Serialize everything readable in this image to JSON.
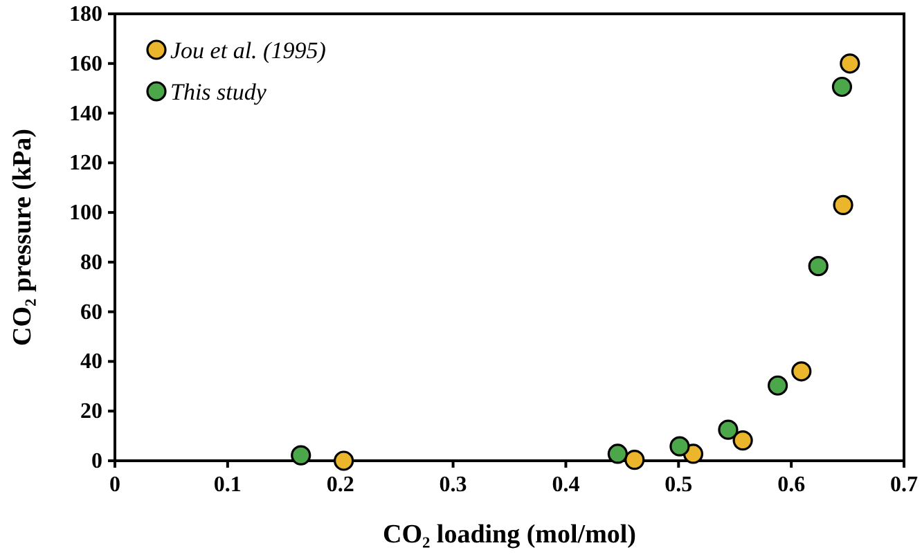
{
  "chart_data": {
    "type": "scatter",
    "xlabel": "CO₂ loading (mol/mol)",
    "ylabel": "CO₂ pressure (kPa)",
    "xlim": [
      0,
      0.7
    ],
    "xticks": [
      0,
      0.1,
      0.2,
      0.3,
      0.4,
      0.5,
      0.6,
      0.7
    ],
    "ylim": [
      0,
      180
    ],
    "yticks": [
      0,
      20,
      40,
      60,
      80,
      100,
      120,
      140,
      160,
      180
    ],
    "grid": false,
    "legend": "top left",
    "marker": "circle",
    "series": [
      {
        "name": "Jou et al. (1995)",
        "color": "#ebb52c",
        "x": [
          0.203,
          0.461,
          0.513,
          0.557,
          0.609,
          0.646,
          0.652
        ],
        "values": [
          0,
          0.4,
          2.8,
          8.2,
          36,
          103,
          160
        ]
      },
      {
        "name": "This study",
        "color": "#4ca64a",
        "x": [
          0.165,
          0.446,
          0.501,
          0.544,
          0.588,
          0.624,
          0.645
        ],
        "values": [
          2.2,
          2.8,
          5.8,
          12.5,
          30.3,
          78.4,
          150.6
        ]
      }
    ]
  }
}
